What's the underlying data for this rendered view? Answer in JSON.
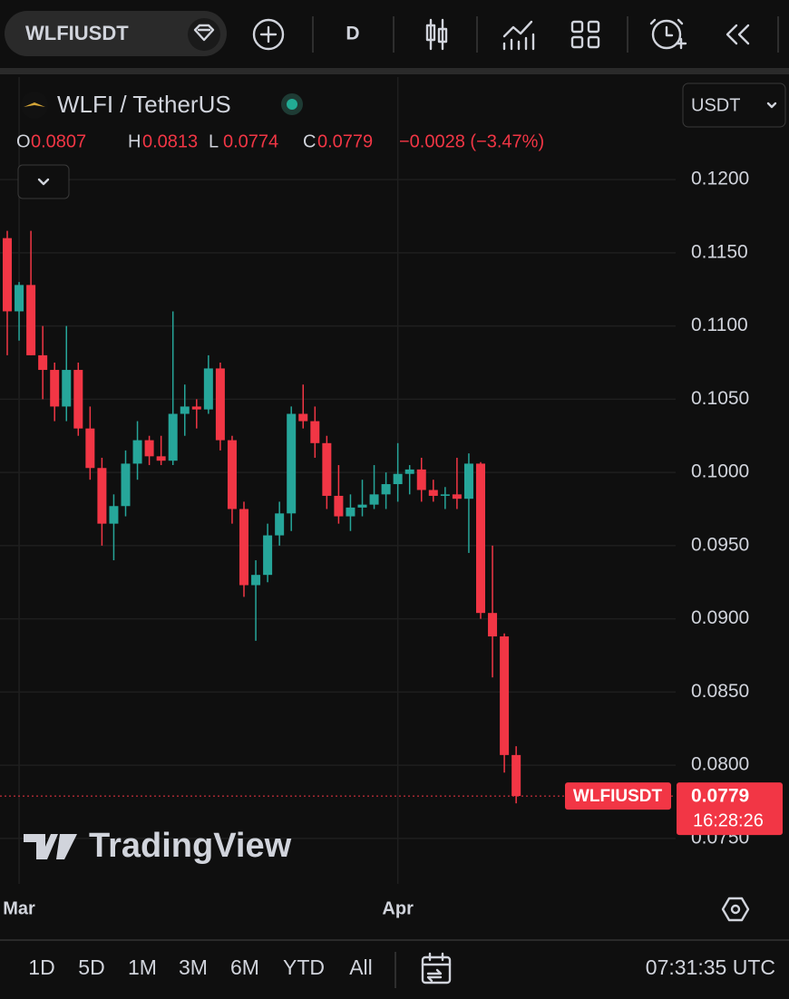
{
  "toolbar": {
    "symbol": "WLFIUSDT",
    "interval": "D"
  },
  "header": {
    "change": "−0.0028 (−3.47%)",
    "currency": "USDT",
    "open_label": "O",
    "high_label": "H",
    "low_label": "L",
    "close_label": "C"
  },
  "price_label": {
    "countdown": "16:28:26"
  },
  "watermark": "TradingView",
  "range_buttons": [
    "1D",
    "5D",
    "1M",
    "3M",
    "6M",
    "YTD",
    "All"
  ],
  "clock": "07:31:35 UTC",
  "chart_data": {
    "type": "candlestick",
    "title": "WLFI / TetherUS",
    "categories": [
      null,
      "Mar",
      null,
      null,
      null,
      null,
      null,
      null,
      null,
      null,
      null,
      null,
      null,
      null,
      null,
      null,
      null,
      null,
      null,
      null,
      null,
      null,
      null,
      null,
      null,
      null,
      null,
      null,
      null,
      null,
      null,
      null,
      null,
      "Apr",
      null,
      null,
      null,
      null,
      null,
      null,
      null,
      null,
      null,
      null
    ],
    "open": [
      0.116,
      0.111,
      0.1128,
      0.108,
      0.107,
      0.1045,
      0.107,
      0.103,
      0.1003,
      0.0965,
      0.0977,
      0.1006,
      0.1022,
      0.1011,
      0.1008,
      0.104,
      0.1045,
      0.1043,
      0.1071,
      0.1022,
      0.0975,
      0.0923,
      0.093,
      0.0957,
      0.0972,
      0.104,
      0.1035,
      0.102,
      0.0984,
      0.097,
      0.0976,
      0.0978,
      0.0985,
      0.0992,
      0.0999,
      0.1002,
      0.0988,
      0.0984,
      0.0985,
      0.0982,
      0.1006,
      0.0904,
      0.0888,
      0.0807
    ],
    "high": [
      0.1165,
      0.113,
      0.1165,
      0.11,
      0.1075,
      0.11,
      0.1075,
      0.1045,
      0.101,
      0.0985,
      0.1015,
      0.1035,
      0.1025,
      0.1025,
      0.111,
      0.106,
      0.105,
      0.108,
      0.1075,
      0.1025,
      0.098,
      0.094,
      0.0965,
      0.098,
      0.1045,
      0.106,
      0.1045,
      0.1025,
      0.1005,
      0.0985,
      0.0995,
      0.1005,
      0.1,
      0.102,
      0.1005,
      0.101,
      0.0995,
      0.099,
      0.101,
      0.1013,
      0.1007,
      0.095,
      0.089,
      0.0813
    ],
    "low": [
      0.108,
      0.109,
      0.108,
      0.105,
      0.1035,
      0.1035,
      0.1025,
      0.0995,
      0.095,
      0.094,
      0.097,
      0.0995,
      0.1005,
      0.1005,
      0.1005,
      0.1025,
      0.103,
      0.104,
      0.1015,
      0.0965,
      0.0915,
      0.0885,
      0.0925,
      0.095,
      0.096,
      0.103,
      0.101,
      0.0975,
      0.0965,
      0.096,
      0.097,
      0.0975,
      0.0975,
      0.098,
      0.0985,
      0.098,
      0.098,
      0.0975,
      0.0975,
      0.0945,
      0.09,
      0.086,
      0.0795,
      0.0774
    ],
    "close": [
      0.111,
      0.1128,
      0.108,
      0.107,
      0.1045,
      0.107,
      0.103,
      0.1003,
      0.0965,
      0.0977,
      0.1006,
      0.1022,
      0.1011,
      0.1008,
      0.104,
      0.1045,
      0.1043,
      0.1071,
      0.1022,
      0.0975,
      0.0923,
      0.093,
      0.0957,
      0.0972,
      0.104,
      0.1035,
      0.102,
      0.0984,
      0.097,
      0.0976,
      0.0978,
      0.0985,
      0.0992,
      0.0999,
      0.1002,
      0.0988,
      0.0984,
      0.0985,
      0.0982,
      0.1006,
      0.0904,
      0.0888,
      0.0807,
      0.0779
    ],
    "up_color": "#26a69a",
    "down_color": "#f23645",
    "ylim": [
      0.0719,
      0.127
    ],
    "yticks": [
      {
        "value": 0.075,
        "label": "0.0750"
      },
      {
        "value": 0.08,
        "label": "0.0800"
      },
      {
        "value": 0.085,
        "label": "0.0850"
      },
      {
        "value": 0.09,
        "label": "0.0900"
      },
      {
        "value": 0.095,
        "label": "0.0950"
      },
      {
        "value": 0.1,
        "label": "0.1000"
      },
      {
        "value": 0.105,
        "label": "0.1050"
      },
      {
        "value": 0.11,
        "label": "0.1100"
      },
      {
        "value": 0.115,
        "label": "0.1150"
      },
      {
        "value": 0.12,
        "label": "0.1200"
      }
    ],
    "grid": true
  }
}
